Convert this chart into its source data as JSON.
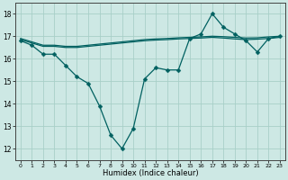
{
  "title": "",
  "xlabel": "Humidex (Indice chaleur)",
  "ylabel": "",
  "xlim": [
    -0.5,
    23.5
  ],
  "ylim": [
    11.5,
    18.5
  ],
  "yticks": [
    12,
    13,
    14,
    15,
    16,
    17,
    18
  ],
  "xticks": [
    0,
    1,
    2,
    3,
    4,
    5,
    6,
    7,
    8,
    9,
    10,
    11,
    12,
    13,
    14,
    15,
    16,
    17,
    18,
    19,
    20,
    21,
    22,
    23
  ],
  "bg_color": "#cde8e4",
  "grid_color": "#a8cfc8",
  "line_color": "#006060",
  "line1_y": [
    16.8,
    16.6,
    16.2,
    16.2,
    15.7,
    15.2,
    14.9,
    13.9,
    12.6,
    12.0,
    12.9,
    15.1,
    15.6,
    15.5,
    15.5,
    16.9,
    17.1,
    18.0,
    17.4,
    17.1,
    16.8,
    16.3,
    16.9,
    17.0
  ],
  "line2_y": [
    16.9,
    16.75,
    16.6,
    16.6,
    16.55,
    16.55,
    16.6,
    16.65,
    16.7,
    16.75,
    16.8,
    16.85,
    16.88,
    16.9,
    16.93,
    16.95,
    16.97,
    17.0,
    16.98,
    16.95,
    16.92,
    16.93,
    16.97,
    17.0
  ],
  "line3_y": [
    16.85,
    16.7,
    16.55,
    16.55,
    16.5,
    16.5,
    16.55,
    16.6,
    16.65,
    16.7,
    16.75,
    16.8,
    16.83,
    16.85,
    16.88,
    16.9,
    16.92,
    16.95,
    16.92,
    16.88,
    16.85,
    16.87,
    16.9,
    16.95
  ],
  "markersize": 2.5,
  "linewidth": 0.9
}
